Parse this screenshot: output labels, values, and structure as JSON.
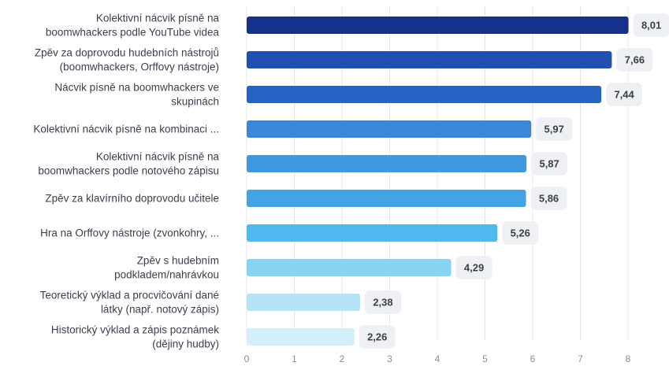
{
  "chart_data": {
    "type": "bar",
    "orientation": "horizontal",
    "categories": [
      [
        "Kolektivní nácvik písně na",
        "boomwhackers podle YouTube videa"
      ],
      [
        "Zpěv za doprovodu hudebních nástrojů",
        "(boomwhackers, Orffovy nástroje)"
      ],
      [
        "Nácvik písně na boomwhackers ve",
        "skupinách"
      ],
      [
        "Kolektivní nácvik písně na kombinaci ..."
      ],
      [
        "Kolektivní nácvik písně na",
        "boomwhackers podle notového zápisu"
      ],
      [
        "Zpěv za klavírního doprovodu učitele"
      ],
      [
        "Hra na Orffovy nástroje (zvonkohry, ..."
      ],
      [
        "Zpěv s hudebním",
        "podkladem/nahrávkou"
      ],
      [
        "Teoretický výklad a procvičování dané",
        "látky (např. notový zápis)"
      ],
      [
        "Historický výklad a zápis poznámek",
        "(dějiny hudby)"
      ]
    ],
    "values": [
      8.01,
      7.66,
      7.44,
      5.97,
      5.87,
      5.86,
      5.26,
      4.29,
      2.38,
      2.26
    ],
    "value_labels": [
      "8,01",
      "7,66",
      "7,44",
      "5,97",
      "5,87",
      "5,86",
      "5,26",
      "4,29",
      "2,38",
      "2,26"
    ],
    "bar_colors": [
      "#17318a",
      "#1f4fb0",
      "#2763c2",
      "#3a86d9",
      "#3f99de",
      "#44a4e3",
      "#4fb8ec",
      "#86d4f2",
      "#b4e4f6",
      "#d2effa"
    ],
    "xlim": [
      0,
      8
    ],
    "xticks": [
      "0",
      "1",
      "2",
      "3",
      "4",
      "5",
      "6",
      "7",
      "8"
    ],
    "grid": true
  }
}
